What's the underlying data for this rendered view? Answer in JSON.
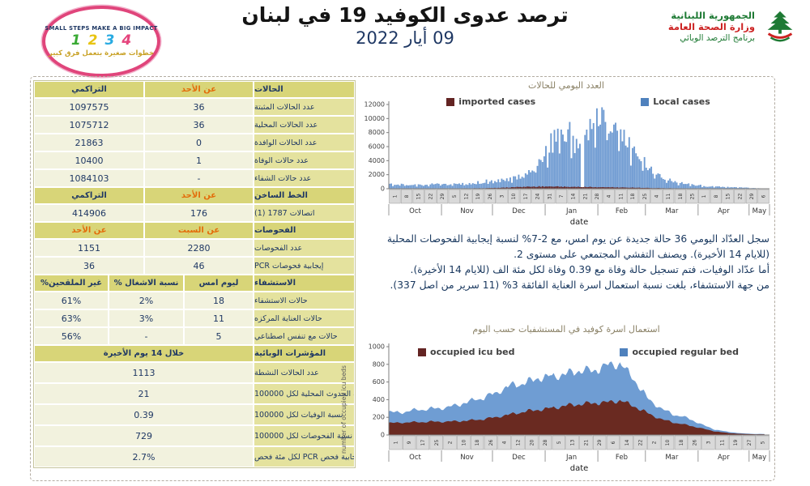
{
  "header": {
    "title": "ترصد عدوى الكوفيد 19 في لبنان",
    "date": "09 أيار 2022",
    "left_logo": {
      "top_text": "SMALL STEPS MAKE A BIG IMPACT",
      "bottom_text": "خطوات صغيرة بتعمل فرق كبير",
      "badges": [
        {
          "num": "1",
          "color": "#3aaa35"
        },
        {
          "num": "2",
          "color": "#e8c411"
        },
        {
          "num": "3",
          "color": "#29abe2"
        },
        {
          "num": "4",
          "color": "#e5447d"
        }
      ]
    },
    "right_logo": {
      "line1": "الجمهورية اللبنانية",
      "line2": "وزارة الصحة العامة",
      "line3": "برنامج الترصد الوبائي"
    }
  },
  "table": {
    "sections": [
      {
        "id": "cases",
        "cols": 3,
        "headers": [
          {
            "t": "التراكمي",
            "c": "navy"
          },
          {
            "t": "عن الأحد",
            "c": "orange"
          },
          {
            "t": "الحالات",
            "c": "navy"
          }
        ],
        "rows": [
          [
            "1097575",
            "36",
            "عدد الحالات المثبتة"
          ],
          [
            "1075712",
            "36",
            "عدد الحالات المحلية"
          ],
          [
            "21863",
            "0",
            "عدد الحالات الوافدة"
          ],
          [
            "10400",
            "1",
            "عدد حالات الوفاة"
          ],
          [
            "1084103",
            "-",
            "عدد حالات الشفاء"
          ]
        ]
      },
      {
        "id": "hotline",
        "cols": 3,
        "headers": [
          {
            "t": "التراكمي",
            "c": "navy"
          },
          {
            "t": "عن الأحد",
            "c": "orange"
          },
          {
            "t": "الخط الساخن",
            "c": "navy"
          }
        ],
        "rows": [
          [
            "414906",
            "176",
            "اتصالات 1787 (1)"
          ]
        ]
      },
      {
        "id": "tests",
        "cols": 3,
        "headers": [
          {
            "t": "عن الأحد",
            "c": "orange"
          },
          {
            "t": "عن السبت",
            "c": "orange"
          },
          {
            "t": "الفحوصات",
            "c": "navy"
          }
        ],
        "rows": [
          [
            "1151",
            "2280",
            "عدد الفحوصات"
          ],
          [
            "36",
            "46",
            "إيجابية فحوصات PCR"
          ]
        ]
      },
      {
        "id": "hospitalization",
        "cols": 4,
        "headers": [
          {
            "t": "%غير الملقحين",
            "c": "navy"
          },
          {
            "t": "% نسبة الاشغال",
            "c": "navy"
          },
          {
            "t": "ليوم امس",
            "c": "navy"
          },
          {
            "t": "الاستشفاء",
            "c": "navy"
          }
        ],
        "rows": [
          [
            "61%",
            "2%",
            "18",
            "حالات الاستشفاء"
          ],
          [
            "63%",
            "3%",
            "11",
            "حالات العناية المركزه"
          ],
          [
            "56%",
            "-",
            "5",
            "حالات مع تنفس اصطناعي"
          ]
        ]
      },
      {
        "id": "indicators",
        "cols": 2,
        "headers": [
          {
            "t": "خلال 14 يوم الأخيرة",
            "c": "navy"
          },
          {
            "t": "المؤشرات الوبائية",
            "c": "navy"
          }
        ],
        "rows": [
          [
            "1113",
            "عدد الحالات النشطة"
          ],
          [
            "21",
            "نسبة الحدوث المحلية لكل 100000"
          ],
          [
            "0.39",
            "نسبة الوفيات لكل 100000"
          ],
          [
            "729",
            "نسبة الفحوصات لكل 100000"
          ],
          [
            "2.7%",
            "إيجابية فحص PCR لكل مئة فحص"
          ]
        ]
      }
    ]
  },
  "summary": {
    "lines": [
      "سجل العدّاد اليومي 36 حالة جديدة عن يوم امس، مع 2-7% لنسبة إيجابية الفحوصات المحلية (للايام 14 الأخيرة). ويصنف التفشي المجتمعي على مستوى 2.",
      "أما عدّاد الوفيات، فتم تسجيل حالة وفاة مع 0.39 وفاة لكل مئة الف (للايام 14 الأخيرة).",
      "من جهة الاستشفاء، بلغت نسبة استعمال اسرة العناية الفائقة 3% (11 سرير من اصل 337)."
    ]
  },
  "chart_data": [
    {
      "type": "bar",
      "title": "العدد اليومي للحالات",
      "xlabel": "date",
      "ylim": [
        0,
        12000
      ],
      "ytick_step": 2000,
      "grid": false,
      "legend_position": "top",
      "anchor_step_days": 7,
      "anchor_labels": [
        "Oct 1",
        "Oct 8",
        "Oct 15",
        "Oct 22",
        "Oct 29",
        "Nov 5",
        "Nov 12",
        "Nov 19",
        "Nov 26",
        "Dec 3",
        "Dec 10",
        "Dec 17",
        "Dec 24",
        "Dec 31",
        "Jan 7",
        "Jan 14",
        "Jan 21",
        "Jan 28",
        "Feb 4",
        "Feb 11",
        "Feb 18",
        "Feb 25",
        "Mar 4",
        "Mar 11",
        "Mar 18",
        "Mar 25",
        "Apr 1",
        "Apr 8",
        "Apr 15",
        "Apr 22",
        "Apr 29",
        "May 6"
      ],
      "x_tick_labels": [
        "1",
        "8",
        "15",
        "22",
        "29",
        "5",
        "12",
        "19",
        "26",
        "3",
        "10",
        "17",
        "24",
        "31",
        "7",
        "14",
        "21",
        "28",
        "4",
        "11",
        "18",
        "25",
        "4",
        "11",
        "18",
        "25",
        "1",
        "8",
        "15",
        "22",
        "29",
        "6"
      ],
      "months": [
        "Oct",
        "Nov",
        "Dec",
        "Jan",
        "Feb",
        "Mar",
        "Apr",
        "May"
      ],
      "series": [
        {
          "name": "imported cases",
          "color": "#632423",
          "legend_color": "#632423",
          "values": [
            30,
            30,
            30,
            40,
            40,
            50,
            50,
            60,
            80,
            120,
            180,
            250,
            300,
            320,
            300,
            280,
            260,
            240,
            220,
            200,
            170,
            140,
            100,
            80,
            60,
            50,
            40,
            30,
            25,
            20,
            15,
            10
          ]
        },
        {
          "name": "Local cases",
          "color": "#6f9bd2",
          "legend_color": "#4f81bd",
          "values": [
            650,
            560,
            500,
            580,
            660,
            600,
            640,
            760,
            950,
            1150,
            1350,
            1750,
            2400,
            4700,
            7800,
            7200,
            6300,
            9200,
            10800,
            8500,
            6800,
            4500,
            2600,
            1500,
            950,
            650,
            450,
            340,
            260,
            200,
            140,
            60
          ]
        }
      ]
    },
    {
      "type": "area",
      "title": "استعمال اسرة كوفيد في المستشفيات حسب اليوم",
      "xlabel": "date",
      "ylabel": "number of occupied icu beds",
      "ylim": [
        0,
        1000
      ],
      "ytick_step": 200,
      "grid": false,
      "legend_position": "top",
      "stacked": true,
      "anchor_step_days": 8,
      "anchor_labels": [
        "Oct 1",
        "Oct 9",
        "Oct 17",
        "Oct 25",
        "Nov 2",
        "Nov 10",
        "Nov 18",
        "Nov 26",
        "Dec 4",
        "Dec 12",
        "Dec 20",
        "Dec 28",
        "Jan 5",
        "Jan 13",
        "Jan 21",
        "Jan 29",
        "Feb 6",
        "Feb 14",
        "Feb 22",
        "Mar 2",
        "Mar 10",
        "Mar 18",
        "Mar 26",
        "Apr 3",
        "Apr 11",
        "Apr 19",
        "Apr 27",
        "May 5"
      ],
      "x_tick_labels": [
        "1",
        "9",
        "17",
        "25",
        "2",
        "10",
        "18",
        "26",
        "4",
        "12",
        "20",
        "28",
        "5",
        "13",
        "21",
        "29",
        "6",
        "14",
        "22",
        "2",
        "10",
        "18",
        "26",
        "3",
        "11",
        "19",
        "27",
        "5"
      ],
      "months": [
        "Oct",
        "Nov",
        "Dec",
        "Jan",
        "Feb",
        "Mar",
        "Apr",
        "May"
      ],
      "series": [
        {
          "name": "occupied icu bed",
          "color": "#6a2a21",
          "legend_color": "#632423",
          "values": [
            135,
            140,
            145,
            150,
            150,
            155,
            165,
            180,
            205,
            235,
            265,
            285,
            305,
            330,
            350,
            360,
            370,
            390,
            330,
            250,
            180,
            140,
            110,
            75,
            40,
            22,
            12,
            8
          ]
        },
        {
          "name": "occupied regular bed",
          "color": "#6f9dd3",
          "legend_color": "#4f81bd",
          "values": [
            125,
            115,
            140,
            145,
            155,
            180,
            220,
            245,
            280,
            330,
            320,
            360,
            360,
            355,
            385,
            365,
            420,
            420,
            310,
            170,
            120,
            90,
            80,
            45,
            20,
            13,
            6,
            4
          ]
        }
      ]
    }
  ]
}
